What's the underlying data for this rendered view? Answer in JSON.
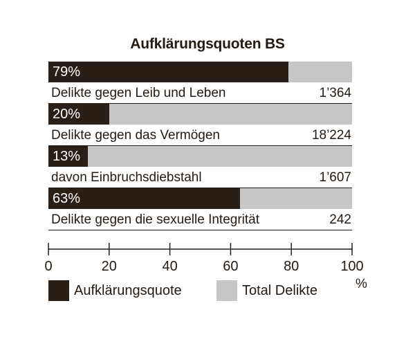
{
  "colors": {
    "quota": "#2a1f16",
    "total": "#c6c6c6",
    "text": "#231a12"
  },
  "chart_data": {
    "type": "bar",
    "orientation": "horizontal",
    "stacked_overlay": true,
    "title": "Aufklärungsquoten BS",
    "unit": "%",
    "xlim": [
      0,
      100
    ],
    "ticks": [
      0,
      20,
      40,
      60,
      80,
      100
    ],
    "tick_labels": [
      "0",
      "20",
      "40",
      "60",
      "80",
      "100"
    ],
    "legend_placement": "bottom-left",
    "grid": false,
    "series": [
      {
        "name": "Aufklärungsquote",
        "color": "#2a1f16"
      },
      {
        "name": "Total Delikte",
        "color": "#c6c6c6"
      }
    ],
    "rows": [
      {
        "category": "Delikte gegen Leib und Leben",
        "quota": 79,
        "quota_label": "79%",
        "total": "1’364"
      },
      {
        "category": "Delikte gegen das Vermögen",
        "quota": 20,
        "quota_label": "20%",
        "total": "18’224"
      },
      {
        "category": "davon Einbruchsdiebstahl",
        "quota": 13,
        "quota_label": "13%",
        "total": "1’607"
      },
      {
        "category": "Delikte gegen die sexuelle Integrität",
        "quota": 63,
        "quota_label": "63%",
        "total": "242"
      }
    ]
  }
}
